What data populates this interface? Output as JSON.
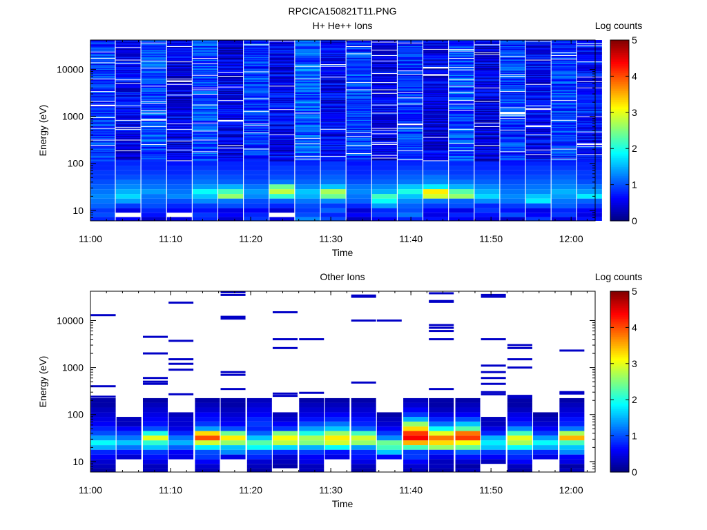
{
  "figure": {
    "title": "RPCICA150821T11.PNG"
  },
  "chart_data": [
    {
      "type": "heatmap",
      "title": "H+ He++ Ions",
      "xlabel": "Time",
      "ylabel": "Energy (eV)",
      "yscale": "log",
      "ylim": [
        6,
        42000
      ],
      "xlim": [
        "11:00",
        "12:03"
      ],
      "x_ticks": [
        "11:00",
        "11:10",
        "11:20",
        "11:30",
        "11:40",
        "11:50",
        "12:00"
      ],
      "y_ticks": [
        "10",
        "100",
        "1000",
        "10000"
      ],
      "colorbar": {
        "label": "Log counts",
        "range": [
          0,
          5
        ],
        "ticks": [
          "0",
          "1",
          "2",
          "3",
          "4",
          "5"
        ]
      },
      "time_columns": [
        "11:01.5",
        "11:04.7",
        "11:07.9",
        "11:11.1",
        "11:14.3",
        "11:17.5",
        "11:20.7",
        "11:23.9",
        "11:27.1",
        "11:30.3",
        "11:33.5",
        "11:36.7",
        "11:39.9",
        "11:43.1",
        "11:46.3",
        "11:49.5",
        "11:52.7",
        "11:55.9",
        "11:59.1",
        "12:02.3"
      ],
      "energy_bins_eV": [
        6.5,
        8.0,
        10.0,
        12.5,
        16.0,
        20.0,
        25.0,
        32.0,
        40.0,
        50.0,
        63.0,
        80.0,
        100.0
      ],
      "low_energy_log_counts": [
        [
          0.8,
          0.6,
          0.4,
          0.5,
          0.8,
          0.4,
          0.9,
          0.5,
          1.3,
          1.0,
          0.3,
          0.6,
          0.8,
          0.7,
          0.6,
          0.5,
          0.4,
          0.9,
          0.5,
          0.7
        ],
        [
          1.0,
          null,
          0.7,
          null,
          0.9,
          0.6,
          0.8,
          null,
          1.0,
          0.8,
          0.6,
          0.9,
          1.2,
          0.5,
          0.8,
          0.7,
          1.0,
          0.6,
          0.9,
          0.5
        ],
        [
          0.9,
          0.5,
          0.8,
          0.6,
          0.7,
          0.5,
          0.6,
          0.4,
          0.9,
          1.1,
          0.4,
          0.8,
          1.0,
          0.6,
          0.5,
          0.9,
          0.7,
          0.5,
          0.8,
          0.6
        ],
        [
          1.1,
          0.9,
          1.0,
          0.8,
          0.9,
          1.0,
          0.9,
          0.8,
          1.0,
          0.9,
          0.8,
          1.4,
          1.1,
          0.9,
          1.0,
          0.8,
          0.9,
          1.0,
          1.1,
          0.9
        ],
        [
          1.2,
          1.4,
          1.1,
          1.0,
          1.3,
          1.2,
          1.0,
          1.1,
          1.2,
          1.3,
          1.1,
          1.9,
          1.3,
          1.2,
          1.1,
          1.3,
          1.2,
          1.8,
          1.2,
          1.1
        ],
        [
          1.3,
          1.7,
          1.2,
          1.3,
          1.6,
          2.6,
          1.3,
          2.1,
          1.5,
          2.4,
          1.2,
          2.2,
          1.6,
          2.9,
          2.6,
          1.7,
          1.3,
          1.6,
          1.4,
          1.8
        ],
        [
          1.2,
          1.5,
          1.4,
          1.2,
          1.9,
          2.2,
          1.4,
          2.8,
          1.6,
          2.7,
          1.3,
          1.5,
          2.0,
          3.2,
          2.3,
          1.5,
          1.2,
          1.3,
          1.5,
          1.4
        ],
        [
          1.1,
          1.3,
          1.2,
          1.1,
          1.4,
          1.5,
          1.2,
          2.4,
          1.3,
          1.6,
          1.2,
          1.3,
          1.6,
          1.8,
          1.5,
          1.3,
          1.1,
          1.2,
          1.3,
          1.2
        ],
        [
          1.0,
          1.2,
          1.1,
          1.0,
          1.2,
          1.1,
          1.0,
          1.2,
          1.1,
          1.2,
          1.0,
          1.1,
          1.2,
          1.3,
          1.2,
          1.1,
          1.0,
          1.1,
          1.2,
          1.0
        ],
        [
          0.9,
          1.0,
          1.0,
          0.9,
          1.1,
          1.0,
          0.9,
          1.0,
          1.0,
          1.1,
          0.9,
          1.0,
          1.1,
          1.2,
          1.0,
          1.0,
          0.9,
          1.0,
          1.1,
          0.9
        ],
        [
          0.9,
          0.9,
          0.9,
          0.8,
          1.0,
          0.9,
          0.9,
          0.9,
          0.9,
          1.0,
          0.8,
          0.9,
          1.0,
          1.0,
          0.9,
          0.9,
          0.8,
          0.9,
          1.0,
          0.9
        ],
        [
          0.8,
          0.9,
          0.8,
          0.8,
          0.9,
          0.8,
          0.8,
          0.9,
          0.9,
          0.9,
          0.8,
          0.8,
          0.9,
          0.9,
          0.9,
          0.8,
          0.8,
          0.9,
          0.9,
          0.8
        ],
        [
          0.8,
          0.8,
          0.8,
          0.7,
          0.8,
          0.8,
          0.8,
          0.8,
          0.8,
          0.9,
          0.7,
          0.8,
          0.8,
          0.9,
          0.8,
          0.8,
          0.7,
          0.8,
          0.8,
          0.8
        ]
      ],
      "high_energy_background_log_counts": [
        0.9,
        0.6,
        1.0,
        0.5,
        1.0,
        0.5,
        0.9,
        0.6,
        1.1,
        0.6,
        0.9,
        0.5,
        0.9,
        0.5,
        1.0,
        0.5,
        0.9,
        0.6,
        0.9,
        0.7
      ]
    },
    {
      "type": "heatmap",
      "title": "Other Ions",
      "xlabel": "Time",
      "ylabel": "Energy (eV)",
      "yscale": "log",
      "ylim": [
        6,
        42000
      ],
      "xlim": [
        "11:00",
        "12:03"
      ],
      "x_ticks": [
        "11:00",
        "11:10",
        "11:20",
        "11:30",
        "11:40",
        "11:50",
        "12:00"
      ],
      "y_ticks": [
        "10",
        "100",
        "1000",
        "10000"
      ],
      "colorbar": {
        "label": "Log counts",
        "range": [
          0,
          5
        ],
        "ticks": [
          "0",
          "1",
          "2",
          "3",
          "4",
          "5"
        ]
      },
      "time_columns": [
        "11:01.6",
        "11:04.8",
        "11:08.1",
        "11:11.3",
        "11:14.6",
        "11:17.8",
        "11:21.1",
        "11:24.3",
        "11:27.6",
        "11:30.8",
        "11:34.1",
        "11:37.3",
        "11:40.6",
        "11:43.8",
        "11:47.1",
        "11:50.3",
        "11:53.6",
        "11:56.8",
        "12:00.1"
      ],
      "energy_bins_eV": [
        6.5,
        8.0,
        10.0,
        12.5,
        16.0,
        20.0,
        25.0,
        32.0,
        40.0,
        50.0,
        63.0,
        80.0,
        100.0,
        125.0,
        160.0,
        200.0
      ],
      "log_counts": [
        [
          0.2,
          null,
          0.3,
          null,
          0.3,
          null,
          0.2,
          null,
          0.3,
          null,
          0.2,
          null,
          0.3,
          0.2,
          0.3,
          null,
          0.2,
          null,
          0.3
        ],
        [
          0.3,
          null,
          0.3,
          null,
          0.4,
          null,
          0.3,
          0.2,
          0.3,
          null,
          0.3,
          null,
          0.4,
          0.3,
          0.2,
          null,
          0.3,
          null,
          0.2
        ],
        [
          0.4,
          null,
          0.5,
          null,
          0.6,
          null,
          0.4,
          0.3,
          0.5,
          null,
          0.5,
          null,
          0.6,
          0.3,
          0.4,
          0.3,
          0.6,
          null,
          0.5
        ],
        [
          0.6,
          0.4,
          0.7,
          0.5,
          0.9,
          0.5,
          0.8,
          0.4,
          0.6,
          0.5,
          0.7,
          0.6,
          0.9,
          0.5,
          0.7,
          0.6,
          0.8,
          0.5,
          0.6
        ],
        [
          0.8,
          0.7,
          0.9,
          0.6,
          1.0,
          1.3,
          1.0,
          0.8,
          0.9,
          0.7,
          0.8,
          1.6,
          0.9,
          0.8,
          1.1,
          0.9,
          1.0,
          0.8,
          1.3
        ],
        [
          1.5,
          1.2,
          1.6,
          1.1,
          1.8,
          1.6,
          1.9,
          1.7,
          1.5,
          1.9,
          1.4,
          2.2,
          2.2,
          2.6,
          2.4,
          1.6,
          1.9,
          1.5,
          1.6
        ],
        [
          1.9,
          1.6,
          2.1,
          1.5,
          2.9,
          2.6,
          2.3,
          2.8,
          2.5,
          2.9,
          2.6,
          2.4,
          3.5,
          3.3,
          3.1,
          1.8,
          2.7,
          1.9,
          2.2
        ],
        [
          1.4,
          1.2,
          3.0,
          1.2,
          4.0,
          3.2,
          1.6,
          3.1,
          2.7,
          3.2,
          2.9,
          1.3,
          4.4,
          3.8,
          4.1,
          1.5,
          3.0,
          1.4,
          3.5
        ],
        [
          1.0,
          0.9,
          2.0,
          0.8,
          3.3,
          2.4,
          1.1,
          2.5,
          2.0,
          2.6,
          2.2,
          0.9,
          4.1,
          3.0,
          3.8,
          0.8,
          2.2,
          0.9,
          2.7
        ],
        [
          0.8,
          0.6,
          1.0,
          0.5,
          1.4,
          1.0,
          0.8,
          0.9,
          1.4,
          1.6,
          1.1,
          0.6,
          3.3,
          1.9,
          2.3,
          0.5,
          1.3,
          0.6,
          1.2
        ],
        [
          0.6,
          0.3,
          0.7,
          0.4,
          0.9,
          0.6,
          0.9,
          0.6,
          1.0,
          1.2,
          0.8,
          0.4,
          2.6,
          1.2,
          1.6,
          0.3,
          0.8,
          0.4,
          0.8
        ],
        [
          0.5,
          0.3,
          0.6,
          0.4,
          0.7,
          0.5,
          0.8,
          0.4,
          0.7,
          0.8,
          0.7,
          0.3,
          1.5,
          0.8,
          1.0,
          0.3,
          0.6,
          0.3,
          0.7
        ],
        [
          0.4,
          null,
          0.5,
          0.3,
          0.6,
          0.4,
          0.6,
          0.3,
          0.5,
          0.6,
          0.5,
          0.2,
          0.9,
          0.5,
          0.6,
          null,
          0.5,
          0.2,
          0.5
        ],
        [
          0.3,
          null,
          0.4,
          null,
          0.4,
          0.3,
          0.5,
          null,
          0.4,
          0.4,
          0.4,
          null,
          0.6,
          0.3,
          0.4,
          null,
          0.3,
          null,
          0.4
        ],
        [
          0.2,
          null,
          0.3,
          null,
          0.3,
          0.2,
          0.4,
          null,
          0.3,
          0.3,
          0.3,
          null,
          0.4,
          0.2,
          0.3,
          null,
          0.2,
          null,
          0.3
        ],
        [
          0.2,
          null,
          0.2,
          null,
          0.2,
          0.2,
          0.3,
          null,
          0.2,
          0.2,
          0.2,
          null,
          0.3,
          0.2,
          0.2,
          null,
          0.2,
          null,
          0.2
        ]
      ],
      "isolated_counts_eV": [
        [
          400,
          240,
          13000
        ],
        [
          4500,
          2000,
          600,
          500,
          450
        ],
        [
          24000,
          3700,
          1500,
          1200,
          900,
          270
        ],
        [
          40000,
          35000,
          12000,
          11000,
          800,
          700,
          350
        ],
        [
          15000,
          4000,
          2600,
          280,
          250
        ],
        [
          4000,
          290
        ],
        [
          34000,
          32000,
          10000,
          480
        ],
        [
          10000
        ],
        [
          38000,
          26000,
          25000,
          8000,
          7000,
          6000,
          4000,
          350
        ],
        [
          35000,
          32000,
          4000,
          1100,
          800,
          600,
          450,
          300,
          270
        ],
        [
          3000,
          2600,
          1500,
          1000,
          250,
          230
        ],
        [
          2300,
          300,
          280
        ]
      ]
    }
  ]
}
